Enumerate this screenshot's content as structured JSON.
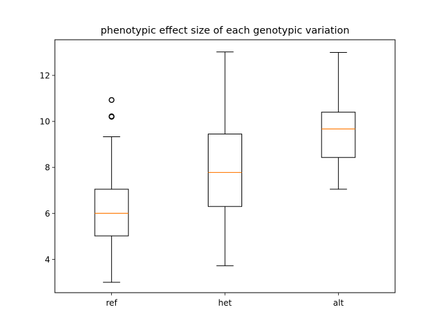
{
  "chart_data": {
    "type": "boxplot",
    "title": "phenotypic effect size of each genotypic variation",
    "xlabel": "",
    "ylabel": "",
    "categories": [
      "ref",
      "het",
      "alt"
    ],
    "ylim": [
      2.55,
      13.55
    ],
    "yticks": [
      4,
      6,
      8,
      10,
      12
    ],
    "grid": false,
    "series": [
      {
        "category": "ref",
        "whisker_low": 3.0,
        "q1": 5.02,
        "median": 6.0,
        "q3": 7.05,
        "whisker_high": 9.33,
        "outliers": [
          10.2,
          10.22,
          10.93
        ]
      },
      {
        "category": "het",
        "whisker_low": 3.72,
        "q1": 6.3,
        "median": 7.78,
        "q3": 9.45,
        "whisker_high": 13.02,
        "outliers": []
      },
      {
        "category": "alt",
        "whisker_low": 7.05,
        "q1": 8.43,
        "median": 9.67,
        "q3": 10.4,
        "whisker_high": 13.0,
        "outliers": []
      }
    ]
  }
}
